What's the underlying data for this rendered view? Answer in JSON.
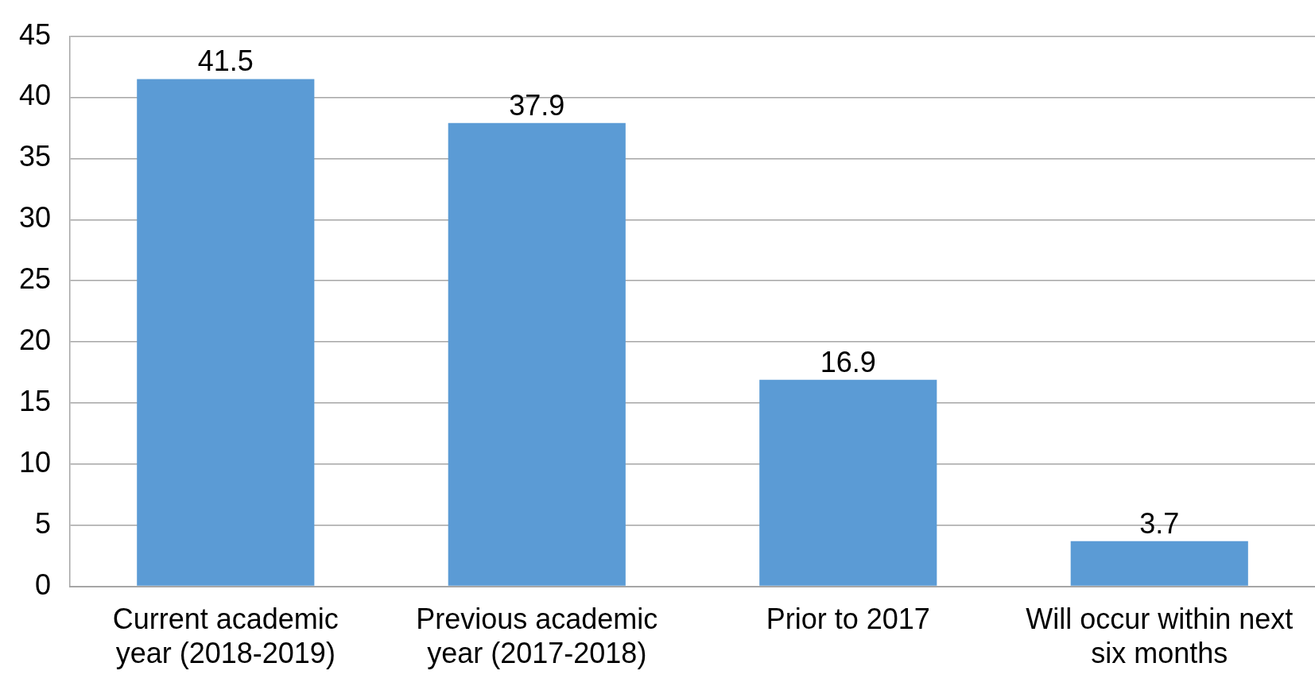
{
  "chart_data": {
    "type": "bar",
    "categories": [
      "Current academic year (2018-2019)",
      "Previous academic year (2017-2018)",
      "Prior to 2017",
      "Will occur within next six months"
    ],
    "values": [
      41.5,
      37.9,
      16.9,
      3.7
    ],
    "color": "#5b9bd5",
    "ylim": [
      0,
      45
    ],
    "yticks": [
      0,
      5,
      10,
      15,
      20,
      25,
      30,
      35,
      40,
      45
    ],
    "grid": "y",
    "data_labels": true,
    "legend": false
  }
}
